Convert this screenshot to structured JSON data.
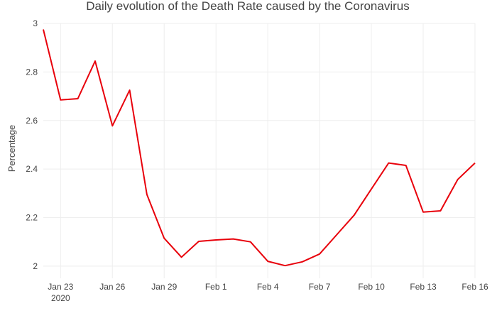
{
  "chart_data": {
    "type": "line",
    "title": "Daily evolution of the Death Rate caused by the Coronavirus",
    "xlabel": "",
    "ylabel": "Percentage",
    "x_tick_labels": [
      {
        "date": "2020-01-23",
        "label": "Jan 23",
        "sublabel": "2020"
      },
      {
        "date": "2020-01-26",
        "label": "Jan 26"
      },
      {
        "date": "2020-01-29",
        "label": "Jan 29"
      },
      {
        "date": "2020-02-01",
        "label": "Feb 1"
      },
      {
        "date": "2020-02-04",
        "label": "Feb 4"
      },
      {
        "date": "2020-02-07",
        "label": "Feb 7"
      },
      {
        "date": "2020-02-10",
        "label": "Feb 10"
      },
      {
        "date": "2020-02-13",
        "label": "Feb 13"
      },
      {
        "date": "2020-02-16",
        "label": "Feb 16"
      }
    ],
    "y_ticks": [
      {
        "value": 2,
        "label": "2"
      },
      {
        "value": 2.2,
        "label": "2.2"
      },
      {
        "value": 2.4,
        "label": "2.4"
      },
      {
        "value": 2.6,
        "label": "2.6"
      },
      {
        "value": 2.8,
        "label": "2.8"
      },
      {
        "value": 3,
        "label": "3"
      }
    ],
    "xlim": [
      "2020-01-22",
      "2020-02-16"
    ],
    "ylim": [
      1.95,
      3.0
    ],
    "grid": true,
    "series": [
      {
        "color": "#e8000b",
        "x": [
          "2020-01-22",
          "2020-01-23",
          "2020-01-24",
          "2020-01-25",
          "2020-01-26",
          "2020-01-27",
          "2020-01-28",
          "2020-01-29",
          "2020-01-30",
          "2020-01-31",
          "2020-02-01",
          "2020-02-02",
          "2020-02-03",
          "2020-02-04",
          "2020-02-05",
          "2020-02-06",
          "2020-02-07",
          "2020-02-08",
          "2020-02-09",
          "2020-02-10",
          "2020-02-11",
          "2020-02-12",
          "2020-02-13",
          "2020-02-14",
          "2020-02-15",
          "2020-02-16"
        ],
        "values": [
          2.975,
          2.685,
          2.69,
          2.845,
          2.578,
          2.725,
          2.295,
          2.115,
          2.037,
          2.102,
          2.108,
          2.112,
          2.1,
          2.02,
          2.002,
          2.018,
          2.05,
          2.13,
          2.21,
          2.318,
          2.425,
          2.415,
          2.223,
          2.228,
          2.357,
          2.425
        ]
      }
    ]
  }
}
